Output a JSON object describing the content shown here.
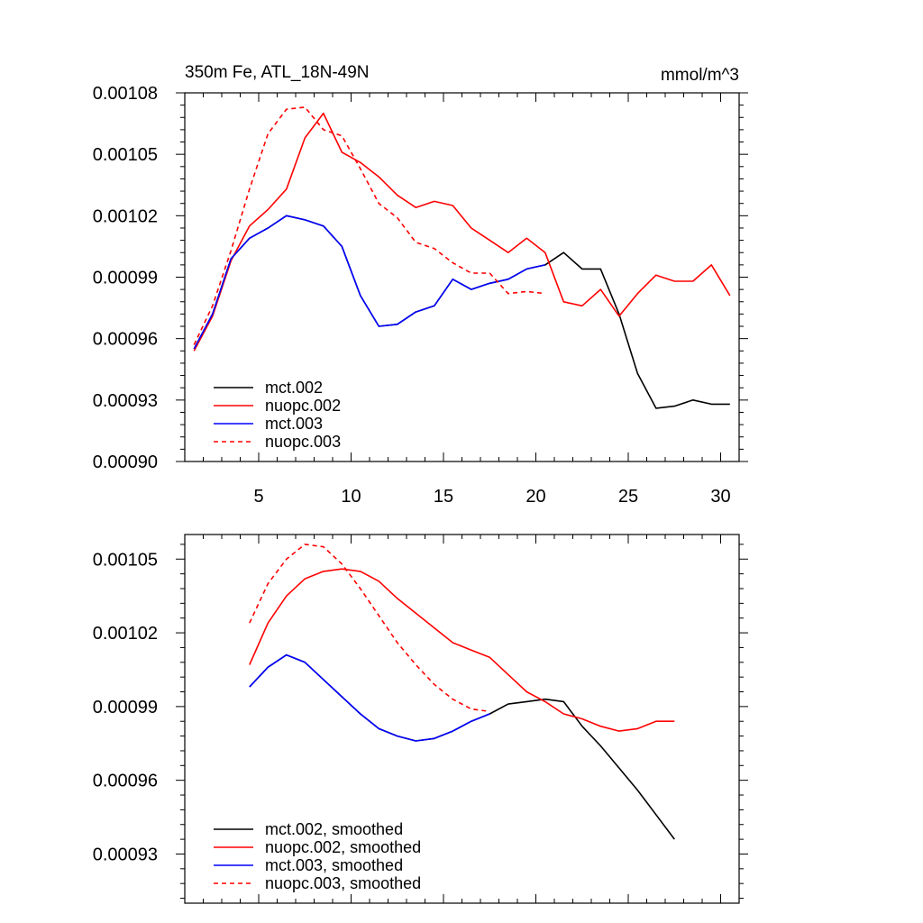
{
  "chart_data": [
    {
      "type": "line",
      "title_left": "350m Fe, ATL_18N-49N",
      "title_right": "mmol/m^3",
      "xlim": [
        1,
        31
      ],
      "ylim": [
        0.0009,
        0.00108
      ],
      "xticks": [
        5,
        10,
        15,
        20,
        25,
        30
      ],
      "yticks": [
        0.0009,
        0.00093,
        0.00096,
        0.00099,
        0.00102,
        0.00105,
        0.00108
      ],
      "yticklabels": [
        "0.00090",
        "0.00093",
        "0.00096",
        "0.00099",
        "0.00102",
        "0.00105",
        "0.00108"
      ],
      "legend_position": "bottom-left",
      "series": [
        {
          "name": "mct.002",
          "color": "#000000",
          "dash": "solid",
          "x": [
            1.5,
            2.5,
            3.5,
            4.5,
            5.5,
            6.5,
            7.5,
            8.5,
            9.5,
            10.5,
            11.5,
            12.5,
            13.5,
            14.5,
            15.5,
            16.5,
            17.5,
            18.5,
            19.5,
            20.5,
            21.5,
            22.5,
            23.5,
            24.5,
            25.5,
            26.5,
            27.5,
            28.5,
            29.5,
            30.5
          ],
          "y": [
            0.000955,
            0.000972,
            0.000999,
            0.001009,
            0.001014,
            0.00102,
            0.001018,
            0.001015,
            0.001005,
            0.000981,
            0.000966,
            0.000967,
            0.000973,
            0.000976,
            0.000989,
            0.000984,
            0.000987,
            0.000989,
            0.000994,
            0.000996,
            0.001002,
            0.000994,
            0.000994,
            0.000972,
            0.000943,
            0.000926,
            0.000927,
            0.00093,
            0.000928,
            0.000928
          ]
        },
        {
          "name": "nuopc.002",
          "color": "#ff0000",
          "dash": "solid",
          "x": [
            1.5,
            2.5,
            3.5,
            4.5,
            5.5,
            6.5,
            7.5,
            8.5,
            9.5,
            10.5,
            11.5,
            12.5,
            13.5,
            14.5,
            15.5,
            16.5,
            17.5,
            18.5,
            19.5,
            20.5,
            21.5,
            22.5,
            23.5,
            24.5,
            25.5,
            26.5,
            27.5,
            28.5,
            29.5,
            30.5
          ],
          "y": [
            0.000954,
            0.000971,
            0.000998,
            0.001015,
            0.001023,
            0.001033,
            0.001058,
            0.00107,
            0.001051,
            0.001046,
            0.001039,
            0.00103,
            0.001024,
            0.001027,
            0.001025,
            0.001014,
            0.001008,
            0.001002,
            0.001009,
            0.001002,
            0.000978,
            0.000976,
            0.000984,
            0.000971,
            0.000982,
            0.000991,
            0.000988,
            0.000988,
            0.000996,
            0.000981
          ]
        },
        {
          "name": "mct.003",
          "color": "#0000ff",
          "dash": "solid",
          "x": [
            1.5,
            2.5,
            3.5,
            4.5,
            5.5,
            6.5,
            7.5,
            8.5,
            9.5,
            10.5,
            11.5,
            12.5,
            13.5,
            14.5,
            15.5,
            16.5,
            17.5,
            18.5,
            19.5,
            20.5
          ],
          "y": [
            0.000955,
            0.000972,
            0.000999,
            0.001009,
            0.001014,
            0.00102,
            0.001018,
            0.001015,
            0.001005,
            0.000981,
            0.000966,
            0.000967,
            0.000973,
            0.000976,
            0.000989,
            0.000984,
            0.000987,
            0.000989,
            0.000994,
            0.000996
          ]
        },
        {
          "name": "nuopc.003",
          "color": "#ff0000",
          "dash": "dashed",
          "x": [
            1.5,
            2.5,
            3.5,
            4.5,
            5.5,
            6.5,
            7.5,
            8.5,
            9.5,
            10.5,
            11.5,
            12.5,
            13.5,
            14.5,
            15.5,
            16.5,
            17.5,
            18.5,
            19.5,
            20.5
          ],
          "y": [
            0.000957,
            0.000976,
            0.001003,
            0.001033,
            0.00106,
            0.001072,
            0.001073,
            0.001062,
            0.001059,
            0.001043,
            0.001026,
            0.001019,
            0.001007,
            0.001004,
            0.000997,
            0.000992,
            0.000992,
            0.000982,
            0.000983,
            0.000982
          ]
        }
      ]
    },
    {
      "type": "line",
      "xlim": [
        1,
        31
      ],
      "ylim": [
        0.00091,
        0.00106
      ],
      "xticks": [
        5,
        10,
        15,
        20,
        25,
        30
      ],
      "yticks": [
        0.00093,
        0.00096,
        0.00099,
        0.00102,
        0.00105
      ],
      "yticklabels": [
        "0.00093",
        "0.00096",
        "0.00099",
        "0.00102",
        "0.00105"
      ],
      "legend_position": "bottom-left",
      "series": [
        {
          "name": "mct.002, smoothed",
          "color": "#000000",
          "dash": "solid",
          "x": [
            4.5,
            5.5,
            6.5,
            7.5,
            8.5,
            9.5,
            10.5,
            11.5,
            12.5,
            13.5,
            14.5,
            15.5,
            16.5,
            17.5,
            18.5,
            19.5,
            20.5,
            21.5,
            22.5,
            23.5,
            24.5,
            25.5,
            26.5,
            27.5
          ],
          "y": [
            0.000998,
            0.001006,
            0.001011,
            0.001008,
            0.001001,
            0.000994,
            0.000987,
            0.000981,
            0.000978,
            0.000976,
            0.000977,
            0.00098,
            0.000984,
            0.000987,
            0.000991,
            0.000992,
            0.000993,
            0.000992,
            0.000982,
            0.000974,
            0.000965,
            0.000956,
            0.000946,
            0.000936
          ]
        },
        {
          "name": "nuopc.002, smoothed",
          "color": "#ff0000",
          "dash": "solid",
          "x": [
            4.5,
            5.5,
            6.5,
            7.5,
            8.5,
            9.5,
            10.5,
            11.5,
            12.5,
            13.5,
            14.5,
            15.5,
            16.5,
            17.5,
            18.5,
            19.5,
            20.5,
            21.5,
            22.5,
            23.5,
            24.5,
            25.5,
            26.5,
            27.5
          ],
          "y": [
            0.001007,
            0.001024,
            0.001035,
            0.001042,
            0.001045,
            0.001046,
            0.001045,
            0.001041,
            0.001034,
            0.001028,
            0.001022,
            0.001016,
            0.001013,
            0.00101,
            0.001003,
            0.000996,
            0.000992,
            0.000987,
            0.000985,
            0.000982,
            0.00098,
            0.000981,
            0.000984,
            0.000984
          ]
        },
        {
          "name": "mct.003, smoothed",
          "color": "#0000ff",
          "dash": "solid",
          "x": [
            4.5,
            5.5,
            6.5,
            7.5,
            8.5,
            9.5,
            10.5,
            11.5,
            12.5,
            13.5,
            14.5,
            15.5,
            16.5,
            17.5
          ],
          "y": [
            0.000998,
            0.001006,
            0.001011,
            0.001008,
            0.001001,
            0.000994,
            0.000987,
            0.000981,
            0.000978,
            0.000976,
            0.000977,
            0.00098,
            0.000984,
            0.000987
          ]
        },
        {
          "name": "nuopc.003, smoothed",
          "color": "#ff0000",
          "dash": "dashed",
          "x": [
            4.5,
            5.5,
            6.5,
            7.5,
            8.5,
            9.5,
            10.5,
            11.5,
            12.5,
            13.5,
            14.5,
            15.5,
            16.5,
            17.5
          ],
          "y": [
            0.001024,
            0.00104,
            0.00105,
            0.001056,
            0.001055,
            0.001048,
            0.001038,
            0.001027,
            0.001016,
            0.001007,
            0.000999,
            0.000993,
            0.000989,
            0.000988
          ]
        }
      ]
    }
  ]
}
